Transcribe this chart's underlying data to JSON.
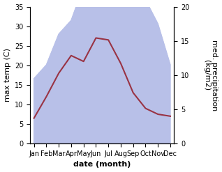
{
  "months": [
    "Jan",
    "Feb",
    "Mar",
    "Apr",
    "May",
    "Jun",
    "Jul",
    "Aug",
    "Sep",
    "Oct",
    "Nov",
    "Dec"
  ],
  "max_temp": [
    6.5,
    12.0,
    18.0,
    22.5,
    21.0,
    27.0,
    26.5,
    20.5,
    13.0,
    9.0,
    7.5,
    7.0
  ],
  "precipitation": [
    9.5,
    11.5,
    16.0,
    18.0,
    23.0,
    32.0,
    34.0,
    29.0,
    27.0,
    21.0,
    17.5,
    11.5
  ],
  "temp_color": "#993344",
  "precip_fill_color": "#b8c0e8",
  "ylim_temp": [
    0,
    35
  ],
  "ylim_precip": [
    0,
    20
  ],
  "ylabel_left": "max temp (C)",
  "ylabel_right": "med. precipitation\n(kg/m2)",
  "xlabel": "date (month)",
  "bg_color": "#ffffff",
  "label_fontsize": 8,
  "tick_fontsize": 7
}
